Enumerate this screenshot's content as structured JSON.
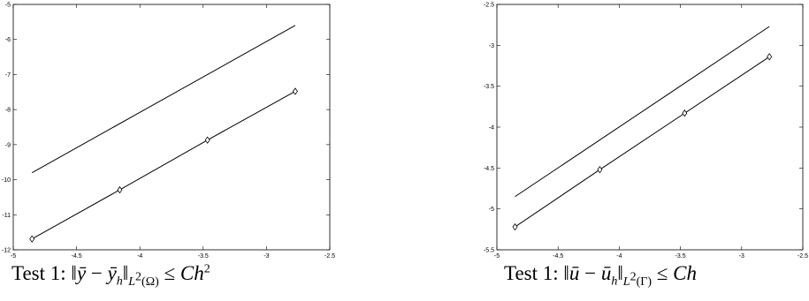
{
  "chart_data": [
    {
      "type": "line",
      "title": "",
      "xlabel": "",
      "ylabel": "",
      "xlim": [
        -5,
        -2.5
      ],
      "ylim": [
        -12,
        -5
      ],
      "xticks": [
        -5,
        -4.5,
        -4,
        -3.5,
        -3,
        -2.5
      ],
      "yticks": [
        -5,
        -6,
        -7,
        -8,
        -9,
        -10,
        -11,
        -12
      ],
      "xtick_labels": [
        "-5",
        "-4.5",
        "-4",
        "-3.5",
        "-3",
        "-2.5"
      ],
      "ytick_labels": [
        "-5",
        "-6",
        "-7",
        "-8",
        "-9",
        "-10",
        "-11",
        "-12"
      ],
      "grid": false,
      "series": [
        {
          "marker": "none",
          "x": [
            -4.852,
            -2.773
          ],
          "y": [
            -9.8,
            -5.6
          ]
        },
        {
          "marker": "diamond",
          "x": [
            -4.852,
            -4.159,
            -3.466,
            -2.773
          ],
          "y": [
            -11.69,
            -10.29,
            -8.87,
            -7.48
          ]
        }
      ],
      "caption": {
        "prefix": "Test 1: ‖",
        "y": "ȳ",
        "minus": " − ",
        "yh": "ȳ",
        "h": "h",
        "norm": "‖",
        "space": "L",
        "space_sup": "2",
        "domain": "(Ω)",
        "leq": " ≤ ",
        "C": "C",
        "hh": "h",
        "power": "2"
      }
    },
    {
      "type": "line",
      "title": "",
      "xlabel": "",
      "ylabel": "",
      "xlim": [
        -5,
        -2.5
      ],
      "ylim": [
        -5.5,
        -2.5
      ],
      "xticks": [
        -5,
        -4.5,
        -4,
        -3.5,
        -3,
        -2.5
      ],
      "yticks": [
        -2.5,
        -3,
        -3.5,
        -4,
        -4.5,
        -5,
        -5.5
      ],
      "xtick_labels": [
        "-5",
        "-4.5",
        "-4",
        "-3.5",
        "-3",
        "-2.5"
      ],
      "ytick_labels": [
        "-2.5",
        "-3",
        "-3.5",
        "-4",
        "-4.5",
        "-5",
        "-5.5"
      ],
      "grid": false,
      "series": [
        {
          "marker": "none",
          "x": [
            -4.852,
            -2.773
          ],
          "y": [
            -4.85,
            -2.77
          ]
        },
        {
          "marker": "diamond",
          "x": [
            -4.852,
            -4.159,
            -3.466,
            -2.773
          ],
          "y": [
            -5.22,
            -4.52,
            -3.83,
            -3.14
          ]
        }
      ],
      "caption": {
        "prefix": "Test 1: ‖",
        "u": "ū",
        "minus": " − ",
        "uh": "ū",
        "h": "h",
        "norm": "‖",
        "space": "L",
        "space_sup": "2",
        "domain": "(Γ)",
        "leq": " ≤ ",
        "C": "C",
        "hh": "h"
      }
    }
  ]
}
